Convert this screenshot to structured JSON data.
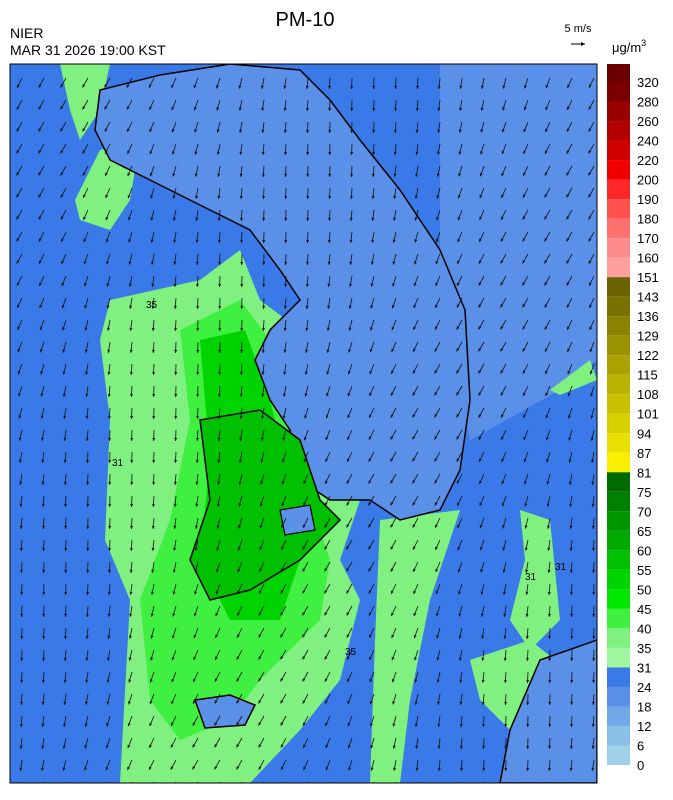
{
  "header": {
    "agency": "NIER",
    "title": "PM-10",
    "datetime": "MAR 31 2026 19:00 KST",
    "wind_scale": "5 m/s"
  },
  "legend": {
    "unit": "μg/m",
    "unit_power": "3",
    "levels": [
      "320",
      "280",
      "260",
      "240",
      "220",
      "200",
      "190",
      "180",
      "170",
      "160",
      "151",
      "143",
      "136",
      "129",
      "122",
      "115",
      "108",
      "101",
      "94",
      "87",
      "81",
      "75",
      "70",
      "65",
      "60",
      "55",
      "50",
      "45",
      "40",
      "35",
      "31",
      "24",
      "18",
      "12",
      "6",
      "0"
    ],
    "colors": [
      "#6b0000",
      "#7a0000",
      "#990000",
      "#b30000",
      "#d00000",
      "#f00000",
      "#ff2828",
      "#ff5050",
      "#ff7070",
      "#ff8c8c",
      "#ffa0a0",
      "#6b6400",
      "#7a7200",
      "#8a8200",
      "#9a9200",
      "#aaa200",
      "#bab200",
      "#cac200",
      "#dad200",
      "#e8e000",
      "#f8f000",
      "#006b00",
      "#008000",
      "#009600",
      "#00aa00",
      "#00c000",
      "#00d400",
      "#00e800",
      "#40f040",
      "#80f080",
      "#a0f8a0",
      "#3a7ae8",
      "#5a90e8",
      "#70a8e8",
      "#88c0e8",
      "#a0d0e8"
    ]
  },
  "contour_labels": [
    "35",
    "31",
    "35",
    "31",
    "31"
  ]
}
